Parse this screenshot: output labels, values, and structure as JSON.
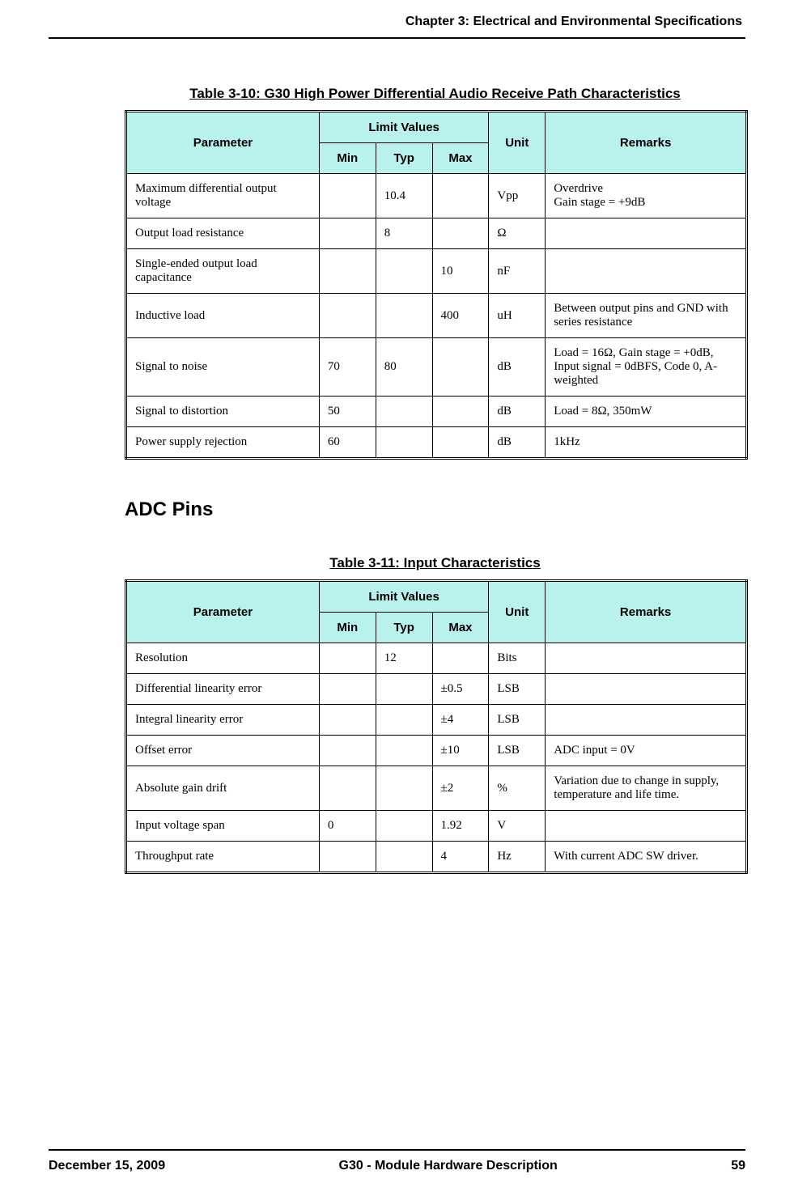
{
  "header": {
    "chapter": "Chapter 3:  Electrical and Environmental Specifications"
  },
  "tables": {
    "t310": {
      "caption": "Table 3-10: G30 High Power Differential Audio Receive Path Characteristics",
      "headers": {
        "parameter": "Parameter",
        "limit_values": "Limit Values",
        "min": "Min",
        "typ": "Typ",
        "max": "Max",
        "unit": "Unit",
        "remarks": "Remarks"
      },
      "rows": [
        {
          "param": "Maximum differential output voltage",
          "min": "",
          "typ": "10.4",
          "max": "",
          "unit": "Vpp",
          "remarks": "Overdrive\nGain stage = +9dB"
        },
        {
          "param": "Output load resistance",
          "min": "",
          "typ": "8",
          "max": "",
          "unit": "Ω",
          "remarks": ""
        },
        {
          "param": "Single-ended output load capacitance",
          "min": "",
          "typ": "",
          "max": "10",
          "unit": "nF",
          "remarks": ""
        },
        {
          "param": "Inductive load",
          "min": "",
          "typ": "",
          "max": "400",
          "unit": "uH",
          "remarks": "Between output pins and GND with series resistance"
        },
        {
          "param": "Signal to noise",
          "min": "70",
          "typ": "80",
          "max": "",
          "unit": "dB",
          "remarks": "Load = 16Ω, Gain stage = +0dB,\nInput signal = 0dBFS, Code 0, A-weighted"
        },
        {
          "param": "Signal to distortion",
          "min": "50",
          "typ": "",
          "max": "",
          "unit": "dB",
          "remarks": "Load = 8Ω, 350mW"
        },
        {
          "param": "Power supply rejection",
          "min": "60",
          "typ": "",
          "max": "",
          "unit": "dB",
          "remarks": "1kHz"
        }
      ]
    },
    "t311": {
      "caption": "Table 3-11: Input Characteristics",
      "headers": {
        "parameter": "Parameter",
        "limit_values": "Limit Values",
        "min": "Min",
        "typ": "Typ",
        "max": "Max",
        "unit": "Unit",
        "remarks": "Remarks"
      },
      "rows": [
        {
          "param": "Resolution",
          "min": "",
          "typ": "12",
          "max": "",
          "unit": "Bits",
          "remarks": ""
        },
        {
          "param": "Differential linearity error",
          "min": "",
          "typ": "",
          "max": "±0.5",
          "unit": "LSB",
          "remarks": ""
        },
        {
          "param": "Integral linearity error",
          "min": "",
          "typ": "",
          "max": "±4",
          "unit": "LSB",
          "remarks": ""
        },
        {
          "param": "Offset error",
          "min": "",
          "typ": "",
          "max": "±10",
          "unit": "LSB",
          "remarks": "ADC input = 0V"
        },
        {
          "param": "Absolute gain drift",
          "min": "",
          "typ": "",
          "max": "±2",
          "unit": "%",
          "remarks": "Variation due to change in supply, temperature and life time."
        },
        {
          "param": "Input voltage span",
          "min": "0",
          "typ": "",
          "max": "1.92",
          "unit": "V",
          "remarks": ""
        },
        {
          "param": "Throughput rate",
          "min": "",
          "typ": "",
          "max": "4",
          "unit": "Hz",
          "remarks": "With current ADC SW driver."
        }
      ]
    }
  },
  "section_heading": "ADC Pins",
  "footer": {
    "date": "December 15, 2009",
    "title": "G30 - Module Hardware Description",
    "page": "59"
  },
  "style": {
    "header_bg": "#b9f1ec",
    "watermark_color": "#b9f1ec"
  }
}
